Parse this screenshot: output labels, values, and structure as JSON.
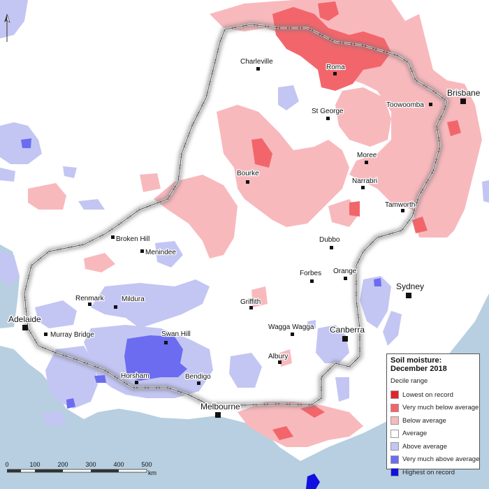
{
  "legend": {
    "title_line1": "Soil moisture:",
    "title_line2": "December 2018",
    "subtitle": "Decile range",
    "items": [
      {
        "label": "Lowest on record",
        "color": "#e8212a"
      },
      {
        "label": "Very much below average",
        "color": "#f2666b"
      },
      {
        "label": "Below average",
        "color": "#f8b9bd"
      },
      {
        "label": "Average",
        "color": "#ffffff"
      },
      {
        "label": "Above average",
        "color": "#c3c6f3"
      },
      {
        "label": "Very much above average",
        "color": "#6b6cf0"
      },
      {
        "label": "Highest on record",
        "color": "#1010e0"
      }
    ]
  },
  "towns": {
    "charleville": "Charleville",
    "roma": "Roma",
    "st_george": "St George",
    "toowoomba": "Toowoomba",
    "moree": "Moree",
    "bourke": "Bourke",
    "narrabri": "Narrabri",
    "tamworth": "Tamworth",
    "broken_hill": "Broken Hill",
    "menindee": "Menindee",
    "dubbo": "Dubbo",
    "forbes": "Forbes",
    "orange": "Orange",
    "renmark": "Renmark",
    "mildura": "Mildura",
    "griffith": "Griffith",
    "wagga_wagga": "Wagga Wagga",
    "swan_hill": "Swan Hill",
    "murray_bridge": "Murray Bridge",
    "albury": "Albury",
    "horsham": "Horsham",
    "bendigo": "Bendigo"
  },
  "cities": {
    "brisbane": "Brisbane",
    "sydney": "Sydney",
    "adelaide": "Adelaide",
    "canberra": "Canberra",
    "melbourne": "Melbourne"
  },
  "scale": {
    "ticks": [
      "0",
      "100",
      "200",
      "300",
      "400",
      "500"
    ],
    "unit": "km"
  }
}
